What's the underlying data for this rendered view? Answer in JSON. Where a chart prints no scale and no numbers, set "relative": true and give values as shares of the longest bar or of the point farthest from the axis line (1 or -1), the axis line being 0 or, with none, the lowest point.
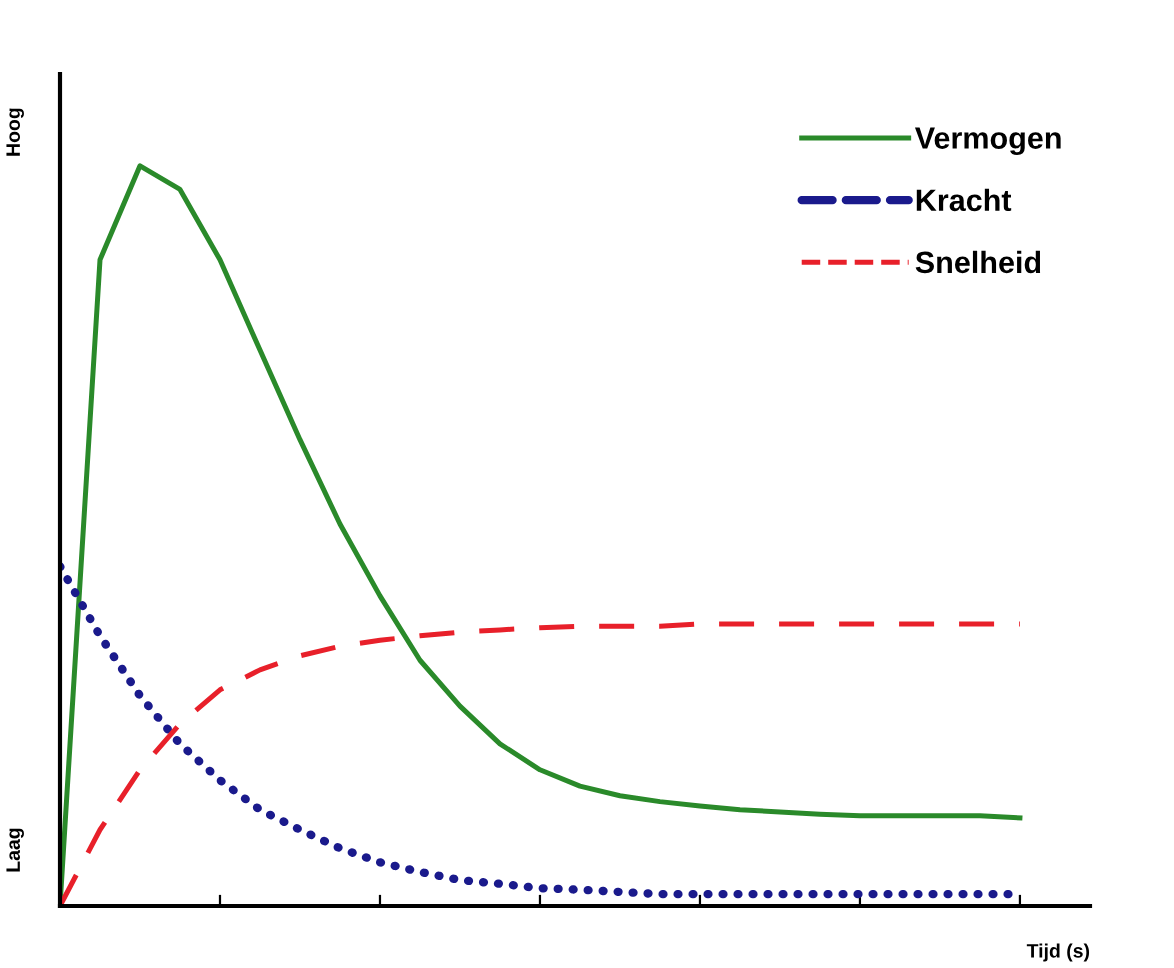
{
  "chart_data": {
    "type": "line",
    "relative": true,
    "xlabel": "Tijd (s)",
    "annotations": [
      "Hoog",
      "Laag"
    ],
    "legend": "top right",
    "grid": false,
    "marker": "none",
    "categories": [
      null,
      null,
      null,
      null,
      null,
      null,
      null,
      null,
      null,
      null,
      null,
      null,
      null,
      null,
      null,
      null,
      null,
      null,
      null,
      null,
      null,
      null,
      null,
      null,
      null
    ],
    "series": [
      {
        "name": "Vermogen",
        "color": "#2a8a2a",
        "line_style": "solid",
        "values": [
          0,
          0.873,
          1.0,
          0.968,
          0.873,
          0.751,
          0.63,
          0.516,
          0.419,
          0.332,
          0.27,
          0.219,
          0.184,
          0.162,
          0.149,
          0.141,
          0.135,
          0.13,
          0.127,
          0.124,
          0.122,
          0.122,
          0.122,
          0.122,
          0.119
        ]
      },
      {
        "name": "Kracht",
        "color": "#1a1a8c",
        "line_style": "dotted",
        "values": [
          0.459,
          0.365,
          0.284,
          0.219,
          0.17,
          0.13,
          0.103,
          0.078,
          0.059,
          0.046,
          0.035,
          0.03,
          0.024,
          0.022,
          0.019,
          0.016,
          0.016,
          0.016,
          0.016,
          0.016,
          0.016,
          0.016,
          0.016,
          0.016,
          0.016
        ]
      },
      {
        "name": "Snelheid",
        "color": "#e8202a",
        "line_style": "dashed",
        "values": [
          0,
          0.103,
          0.184,
          0.246,
          0.292,
          0.319,
          0.338,
          0.351,
          0.359,
          0.365,
          0.37,
          0.373,
          0.376,
          0.378,
          0.378,
          0.378,
          0.381,
          0.381,
          0.381,
          0.381,
          0.381,
          0.381,
          0.381,
          0.381,
          0.381
        ]
      }
    ]
  }
}
